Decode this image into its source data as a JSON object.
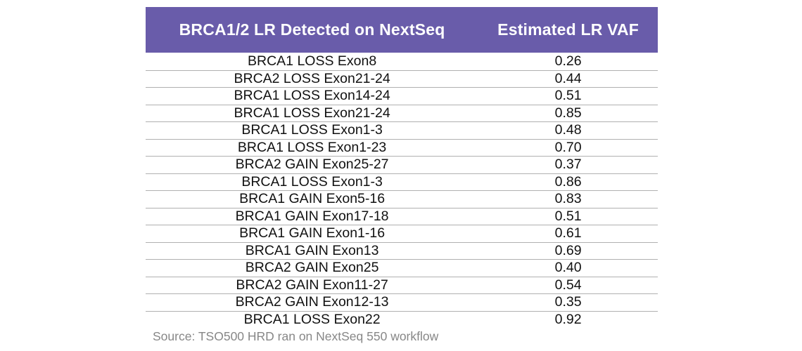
{
  "chart_data": {
    "type": "table",
    "columns": [
      "BRCA1/2 LR Detected on NextSeq",
      "Estimated LR VAF"
    ],
    "rows": [
      [
        "BRCA1 LOSS Exon8",
        0.26
      ],
      [
        "BRCA2 LOSS Exon21-24",
        0.44
      ],
      [
        "BRCA1 LOSS Exon14-24",
        0.51
      ],
      [
        "BRCA1 LOSS Exon21-24",
        0.85
      ],
      [
        "BRCA1 LOSS Exon1-3",
        0.48
      ],
      [
        "BRCA1 LOSS Exon1-23",
        0.7
      ],
      [
        "BRCA2 GAIN Exon25-27",
        0.37
      ],
      [
        "BRCA1 LOSS Exon1-3",
        0.86
      ],
      [
        "BRCA1 GAIN Exon5-16",
        0.83
      ],
      [
        "BRCA1 GAIN Exon17-18",
        0.51
      ],
      [
        "BRCA1 GAIN Exon1-16",
        0.61
      ],
      [
        "BRCA1 GAIN Exon13",
        0.69
      ],
      [
        "BRCA2 GAIN Exon25",
        0.4
      ],
      [
        "BRCA2 GAIN Exon11-27",
        0.54
      ],
      [
        "BRCA2 GAIN Exon12-13",
        0.35
      ],
      [
        "BRCA1 LOSS Exon22",
        0.92
      ]
    ],
    "source": "Source: TSO500 HRD ran on NextSeq 550 workflow"
  },
  "table": {
    "columns": [
      {
        "label": "BRCA1/2 LR Detected on NextSeq"
      },
      {
        "label": "Estimated LR VAF"
      }
    ],
    "rows": [
      {
        "lr": "BRCA1 LOSS Exon8",
        "vaf": "0.26"
      },
      {
        "lr": "BRCA2 LOSS Exon21-24",
        "vaf": "0.44"
      },
      {
        "lr": "BRCA1 LOSS Exon14-24",
        "vaf": "0.51"
      },
      {
        "lr": "BRCA1 LOSS Exon21-24",
        "vaf": "0.85"
      },
      {
        "lr": "BRCA1 LOSS Exon1-3",
        "vaf": "0.48"
      },
      {
        "lr": "BRCA1 LOSS Exon1-23",
        "vaf": "0.70"
      },
      {
        "lr": "BRCA2 GAIN Exon25-27",
        "vaf": "0.37"
      },
      {
        "lr": "BRCA1 LOSS Exon1-3",
        "vaf": "0.86"
      },
      {
        "lr": "BRCA1 GAIN Exon5-16",
        "vaf": "0.83"
      },
      {
        "lr": "BRCA1 GAIN Exon17-18",
        "vaf": "0.51"
      },
      {
        "lr": "BRCA1 GAIN Exon1-16",
        "vaf": "0.61"
      },
      {
        "lr": "BRCA1 GAIN Exon13",
        "vaf": "0.69"
      },
      {
        "lr": "BRCA2 GAIN Exon25",
        "vaf": "0.40"
      },
      {
        "lr": "BRCA2 GAIN Exon11-27",
        "vaf": "0.54"
      },
      {
        "lr": "BRCA2 GAIN Exon12-13",
        "vaf": "0.35"
      },
      {
        "lr": "BRCA1 LOSS Exon22",
        "vaf": "0.92"
      }
    ]
  },
  "source_note": "Source: TSO500 HRD ran on NextSeq 550 workflow",
  "colors": {
    "header_bg": "#695CAA",
    "header_text": "#FFFFFF",
    "row_divider": "#B0B0B0",
    "source_text": "#878787"
  }
}
